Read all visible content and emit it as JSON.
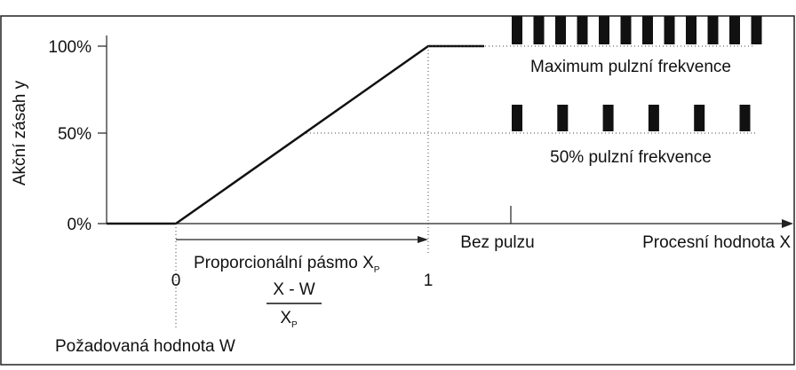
{
  "y_axis": {
    "label": "Akční zásah y",
    "ticks": [
      "100%",
      "50%",
      "0%"
    ]
  },
  "x_axis": {
    "label": "Procesní hodnota X",
    "ticks": [
      "0",
      "1"
    ]
  },
  "labels": {
    "max_pulse": "Maximum pulzní frekvence",
    "half_pulse": "50% pulzní frekvence",
    "no_pulse": "Bez pulzu",
    "band": "Proporcionální pásmo X",
    "band_sub": "P",
    "fraction_top": "X - W",
    "fraction_bottom": "X",
    "fraction_sub": "P",
    "setpoint": "Požadovaná hodnota W"
  }
}
